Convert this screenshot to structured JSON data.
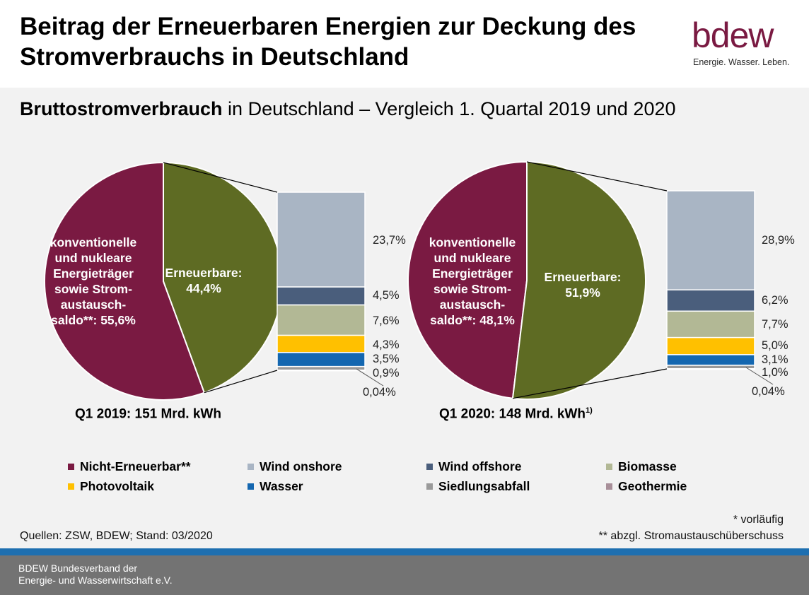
{
  "header": {
    "title": "Beitrag der Erneuerbaren Energien zur Deckung des Stromverbrauchs in Deutschland",
    "logo_word": "bdew",
    "logo_tagline": "Energie. Wasser. Leben.",
    "logo_color": "#7a1a42"
  },
  "subtitle": {
    "bold": "Bruttostromverbrauch",
    "rest": " in Deutschland – Vergleich 1. Quartal 2019 und 2020"
  },
  "colors": {
    "nicht_erneuerbar": "#7a1a42",
    "erneuerbare": "#5e6b23",
    "wind_onshore": "#a9b5c4",
    "wind_offshore": "#4a5e7c",
    "biomasse": "#b2b895",
    "photovoltaik": "#ffc000",
    "wasser": "#1467b0",
    "siedlungsabfall": "#9a9a9a",
    "geothermie": "#a88f99"
  },
  "chart_data": [
    {
      "type": "pie",
      "caption": "Q1 2019: 151 Mrd. kWh",
      "caption_sup": "",
      "slices": [
        {
          "key": "nicht_erneuerbar",
          "label": "konventionelle und nukleare Energieträger sowie Strom-austausch-saldo**: 55,6%",
          "value": 55.6
        },
        {
          "key": "erneuerbare",
          "label": "Erneuerbare: 44,4%",
          "value": 44.4
        }
      ],
      "breakdown": [
        {
          "key": "wind_onshore",
          "value": 23.7,
          "label": "23,7%"
        },
        {
          "key": "wind_offshore",
          "value": 4.5,
          "label": "4,5%"
        },
        {
          "key": "biomasse",
          "value": 7.6,
          "label": "7,6%"
        },
        {
          "key": "photovoltaik",
          "value": 4.3,
          "label": "4,3%"
        },
        {
          "key": "wasser",
          "value": 3.5,
          "label": "3,5%"
        },
        {
          "key": "siedlungsabfall",
          "value": 0.9,
          "label": "0,9%"
        },
        {
          "key": "geothermie",
          "value": 0.04,
          "label": "0,04%"
        }
      ]
    },
    {
      "type": "pie",
      "caption": "Q1 2020: 148 Mrd. kWh",
      "caption_sup": "1)",
      "slices": [
        {
          "key": "nicht_erneuerbar",
          "label": "konventionelle und nukleare Energieträger sowie Strom-austausch-saldo**: 48,1%",
          "value": 48.1
        },
        {
          "key": "erneuerbare",
          "label": "Erneuerbare: 51,9%",
          "value": 51.9
        }
      ],
      "breakdown": [
        {
          "key": "wind_onshore",
          "value": 28.9,
          "label": "28,9%"
        },
        {
          "key": "wind_offshore",
          "value": 6.2,
          "label": "6,2%"
        },
        {
          "key": "biomasse",
          "value": 7.7,
          "label": "7,7%"
        },
        {
          "key": "photovoltaik",
          "value": 5.0,
          "label": "5,0%"
        },
        {
          "key": "wasser",
          "value": 3.1,
          "label": "3,1%"
        },
        {
          "key": "siedlungsabfall",
          "value": 1.0,
          "label": "1,0%"
        },
        {
          "key": "geothermie",
          "value": 0.04,
          "label": "0,04%"
        }
      ]
    }
  ],
  "pie_text": {
    "c2019_nicht": [
      "konventionelle",
      "und nukleare",
      "Energieträger",
      "sowie Strom-",
      "austausch-",
      "saldo**: 55,6%"
    ],
    "c2019_erneuerbar": [
      "Erneuerbare:",
      "44,4%"
    ],
    "c2020_nicht": [
      "konventionelle",
      "und nukleare",
      "Energieträger",
      "sowie Strom-",
      "austausch-",
      "saldo**: 48,1%"
    ],
    "c2020_erneuerbar": [
      "Erneuerbare:",
      "51,9%"
    ]
  },
  "legend": [
    {
      "key": "nicht_erneuerbar",
      "label": "Nicht-Erneuerbar**"
    },
    {
      "key": "wind_onshore",
      "label": "Wind onshore"
    },
    {
      "key": "wind_offshore",
      "label": "Wind offshore"
    },
    {
      "key": "biomasse",
      "label": "Biomasse"
    },
    {
      "key": "photovoltaik",
      "label": "Photovoltaik"
    },
    {
      "key": "wasser",
      "label": "Wasser"
    },
    {
      "key": "siedlungsabfall",
      "label": "Siedlungsabfall"
    },
    {
      "key": "geothermie",
      "label": "Geothermie"
    }
  ],
  "notes": {
    "sources": "Quellen: ZSW, BDEW; Stand: 03/2020",
    "vorlaeufig": "* vorläufig",
    "abzgl": "** abzgl. Stromaustauschüberschuss"
  },
  "footer": {
    "line1": "BDEW Bundesverband der",
    "line2": "Energie- und Wasserwirtschaft e.V."
  }
}
